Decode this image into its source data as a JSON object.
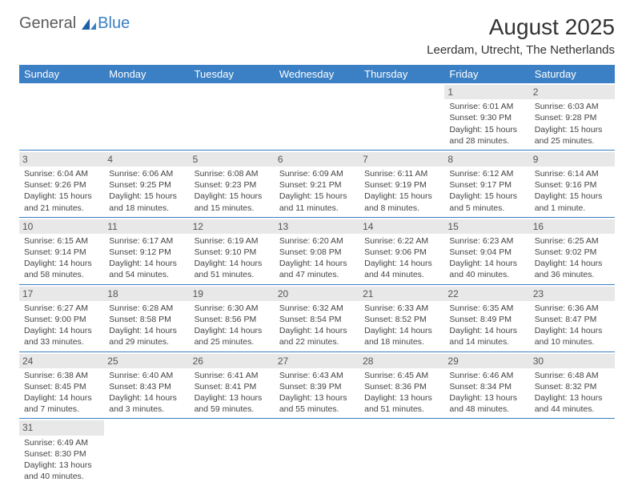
{
  "logo": {
    "text1": "General",
    "text2": "Blue"
  },
  "title": "August 2025",
  "location": "Leerdam, Utrecht, The Netherlands",
  "colors": {
    "header_bg": "#3b7fc4",
    "header_text": "#ffffff",
    "daynum_bg": "#e8e8e8",
    "border": "#3b7fc4",
    "text": "#444444",
    "page_bg": "#ffffff"
  },
  "day_headers": [
    "Sunday",
    "Monday",
    "Tuesday",
    "Wednesday",
    "Thursday",
    "Friday",
    "Saturday"
  ],
  "weeks": [
    [
      null,
      null,
      null,
      null,
      null,
      {
        "n": "1",
        "sunrise": "Sunrise: 6:01 AM",
        "sunset": "Sunset: 9:30 PM",
        "daylight": "Daylight: 15 hours and 28 minutes."
      },
      {
        "n": "2",
        "sunrise": "Sunrise: 6:03 AM",
        "sunset": "Sunset: 9:28 PM",
        "daylight": "Daylight: 15 hours and 25 minutes."
      }
    ],
    [
      {
        "n": "3",
        "sunrise": "Sunrise: 6:04 AM",
        "sunset": "Sunset: 9:26 PM",
        "daylight": "Daylight: 15 hours and 21 minutes."
      },
      {
        "n": "4",
        "sunrise": "Sunrise: 6:06 AM",
        "sunset": "Sunset: 9:25 PM",
        "daylight": "Daylight: 15 hours and 18 minutes."
      },
      {
        "n": "5",
        "sunrise": "Sunrise: 6:08 AM",
        "sunset": "Sunset: 9:23 PM",
        "daylight": "Daylight: 15 hours and 15 minutes."
      },
      {
        "n": "6",
        "sunrise": "Sunrise: 6:09 AM",
        "sunset": "Sunset: 9:21 PM",
        "daylight": "Daylight: 15 hours and 11 minutes."
      },
      {
        "n": "7",
        "sunrise": "Sunrise: 6:11 AM",
        "sunset": "Sunset: 9:19 PM",
        "daylight": "Daylight: 15 hours and 8 minutes."
      },
      {
        "n": "8",
        "sunrise": "Sunrise: 6:12 AM",
        "sunset": "Sunset: 9:17 PM",
        "daylight": "Daylight: 15 hours and 5 minutes."
      },
      {
        "n": "9",
        "sunrise": "Sunrise: 6:14 AM",
        "sunset": "Sunset: 9:16 PM",
        "daylight": "Daylight: 15 hours and 1 minute."
      }
    ],
    [
      {
        "n": "10",
        "sunrise": "Sunrise: 6:15 AM",
        "sunset": "Sunset: 9:14 PM",
        "daylight": "Daylight: 14 hours and 58 minutes."
      },
      {
        "n": "11",
        "sunrise": "Sunrise: 6:17 AM",
        "sunset": "Sunset: 9:12 PM",
        "daylight": "Daylight: 14 hours and 54 minutes."
      },
      {
        "n": "12",
        "sunrise": "Sunrise: 6:19 AM",
        "sunset": "Sunset: 9:10 PM",
        "daylight": "Daylight: 14 hours and 51 minutes."
      },
      {
        "n": "13",
        "sunrise": "Sunrise: 6:20 AM",
        "sunset": "Sunset: 9:08 PM",
        "daylight": "Daylight: 14 hours and 47 minutes."
      },
      {
        "n": "14",
        "sunrise": "Sunrise: 6:22 AM",
        "sunset": "Sunset: 9:06 PM",
        "daylight": "Daylight: 14 hours and 44 minutes."
      },
      {
        "n": "15",
        "sunrise": "Sunrise: 6:23 AM",
        "sunset": "Sunset: 9:04 PM",
        "daylight": "Daylight: 14 hours and 40 minutes."
      },
      {
        "n": "16",
        "sunrise": "Sunrise: 6:25 AM",
        "sunset": "Sunset: 9:02 PM",
        "daylight": "Daylight: 14 hours and 36 minutes."
      }
    ],
    [
      {
        "n": "17",
        "sunrise": "Sunrise: 6:27 AM",
        "sunset": "Sunset: 9:00 PM",
        "daylight": "Daylight: 14 hours and 33 minutes."
      },
      {
        "n": "18",
        "sunrise": "Sunrise: 6:28 AM",
        "sunset": "Sunset: 8:58 PM",
        "daylight": "Daylight: 14 hours and 29 minutes."
      },
      {
        "n": "19",
        "sunrise": "Sunrise: 6:30 AM",
        "sunset": "Sunset: 8:56 PM",
        "daylight": "Daylight: 14 hours and 25 minutes."
      },
      {
        "n": "20",
        "sunrise": "Sunrise: 6:32 AM",
        "sunset": "Sunset: 8:54 PM",
        "daylight": "Daylight: 14 hours and 22 minutes."
      },
      {
        "n": "21",
        "sunrise": "Sunrise: 6:33 AM",
        "sunset": "Sunset: 8:52 PM",
        "daylight": "Daylight: 14 hours and 18 minutes."
      },
      {
        "n": "22",
        "sunrise": "Sunrise: 6:35 AM",
        "sunset": "Sunset: 8:49 PM",
        "daylight": "Daylight: 14 hours and 14 minutes."
      },
      {
        "n": "23",
        "sunrise": "Sunrise: 6:36 AM",
        "sunset": "Sunset: 8:47 PM",
        "daylight": "Daylight: 14 hours and 10 minutes."
      }
    ],
    [
      {
        "n": "24",
        "sunrise": "Sunrise: 6:38 AM",
        "sunset": "Sunset: 8:45 PM",
        "daylight": "Daylight: 14 hours and 7 minutes."
      },
      {
        "n": "25",
        "sunrise": "Sunrise: 6:40 AM",
        "sunset": "Sunset: 8:43 PM",
        "daylight": "Daylight: 14 hours and 3 minutes."
      },
      {
        "n": "26",
        "sunrise": "Sunrise: 6:41 AM",
        "sunset": "Sunset: 8:41 PM",
        "daylight": "Daylight: 13 hours and 59 minutes."
      },
      {
        "n": "27",
        "sunrise": "Sunrise: 6:43 AM",
        "sunset": "Sunset: 8:39 PM",
        "daylight": "Daylight: 13 hours and 55 minutes."
      },
      {
        "n": "28",
        "sunrise": "Sunrise: 6:45 AM",
        "sunset": "Sunset: 8:36 PM",
        "daylight": "Daylight: 13 hours and 51 minutes."
      },
      {
        "n": "29",
        "sunrise": "Sunrise: 6:46 AM",
        "sunset": "Sunset: 8:34 PM",
        "daylight": "Daylight: 13 hours and 48 minutes."
      },
      {
        "n": "30",
        "sunrise": "Sunrise: 6:48 AM",
        "sunset": "Sunset: 8:32 PM",
        "daylight": "Daylight: 13 hours and 44 minutes."
      }
    ],
    [
      {
        "n": "31",
        "sunrise": "Sunrise: 6:49 AM",
        "sunset": "Sunset: 8:30 PM",
        "daylight": "Daylight: 13 hours and 40 minutes."
      },
      null,
      null,
      null,
      null,
      null,
      null
    ]
  ]
}
